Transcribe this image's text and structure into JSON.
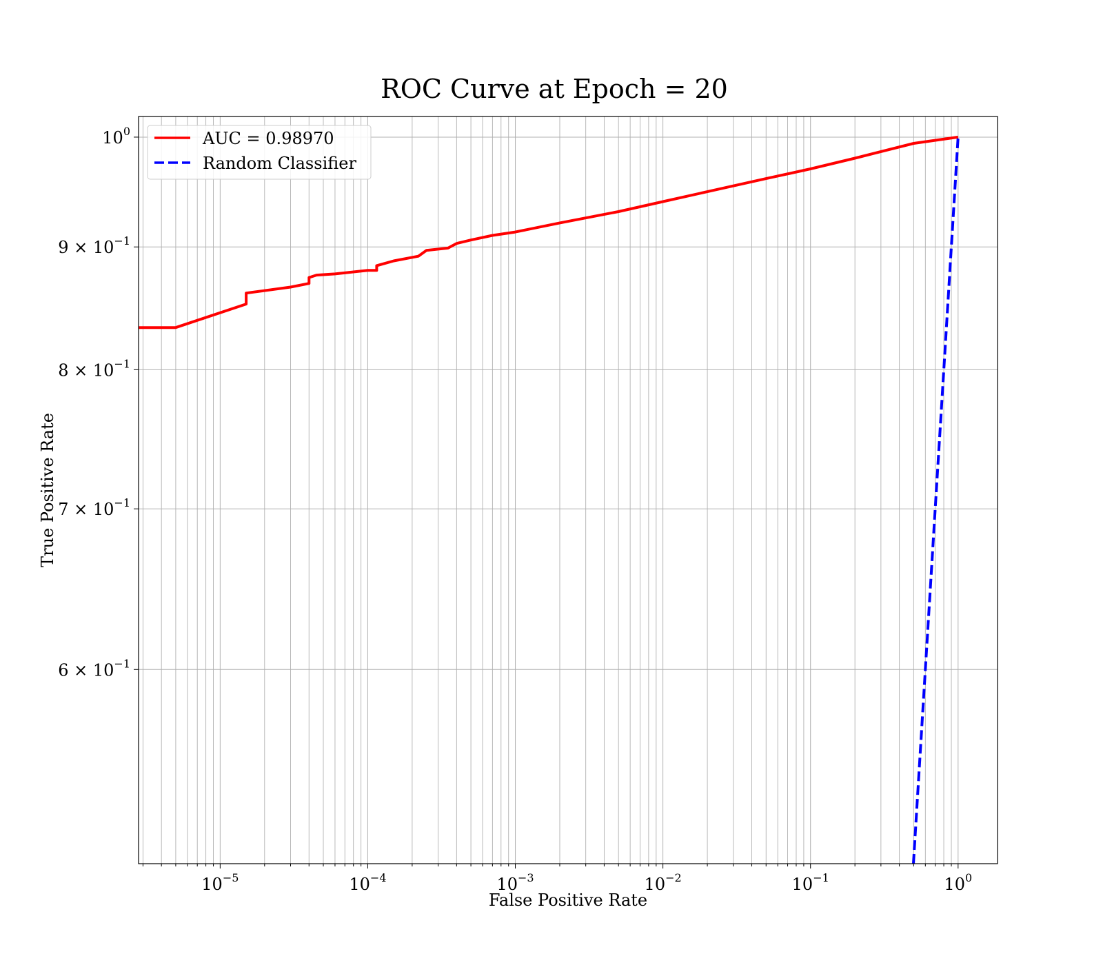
{
  "chart_data": {
    "type": "line",
    "title": "ROC Curve at Epoch = 20",
    "xlabel": "False Positive Rate",
    "ylabel": "True Positive Rate",
    "xscale": "log",
    "yscale": "log",
    "xlim": [
      2.8e-06,
      1.85
    ],
    "ylim": [
      0.498,
      1.02
    ],
    "grid": true,
    "legend_position": "top-left",
    "x_ticks": [
      {
        "value": 1e-05,
        "base": "10",
        "exp": "−5"
      },
      {
        "value": 0.0001,
        "base": "10",
        "exp": "−4"
      },
      {
        "value": 0.001,
        "base": "10",
        "exp": "−3"
      },
      {
        "value": 0.01,
        "base": "10",
        "exp": "−2"
      },
      {
        "value": 0.1,
        "base": "10",
        "exp": "−1"
      },
      {
        "value": 1,
        "base": "10",
        "exp": "0"
      }
    ],
    "y_ticks": [
      {
        "value": 1.0,
        "mant": "",
        "base": "10",
        "exp": "0"
      },
      {
        "value": 0.9,
        "mant": "9 × ",
        "base": "10",
        "exp": "−1"
      },
      {
        "value": 0.8,
        "mant": "8 × ",
        "base": "10",
        "exp": "−1"
      },
      {
        "value": 0.7,
        "mant": "7 × ",
        "base": "10",
        "exp": "−1"
      },
      {
        "value": 0.6,
        "mant": "6 × ",
        "base": "10",
        "exp": "−1"
      }
    ],
    "series": [
      {
        "name": "AUC = 0.98970",
        "color": "#ff0000",
        "style": "solid",
        "x": [
          2.8e-06,
          5e-06,
          1.5e-05,
          1.5e-05,
          3e-05,
          4e-05,
          4e-05,
          4.5e-05,
          6e-05,
          0.0001,
          0.000115,
          0.000115,
          0.00015,
          0.00022,
          0.00025,
          0.00035,
          0.0004,
          0.0005,
          0.0007,
          0.001,
          0.002,
          0.005,
          0.01,
          0.02,
          0.05,
          0.1,
          0.2,
          0.5,
          1.0
        ],
        "y": [
          0.833,
          0.833,
          0.852,
          0.861,
          0.866,
          0.869,
          0.874,
          0.876,
          0.877,
          0.88,
          0.88,
          0.884,
          0.888,
          0.892,
          0.897,
          0.899,
          0.903,
          0.906,
          0.91,
          0.913,
          0.921,
          0.931,
          0.94,
          0.949,
          0.961,
          0.97,
          0.98,
          0.994,
          1.0
        ]
      },
      {
        "name": "Random Classifier",
        "color": "#0000ff",
        "style": "dashed",
        "x": [
          0.498,
          0.55,
          0.6,
          0.7,
          0.8,
          0.9,
          1.0
        ],
        "y": [
          0.498,
          0.55,
          0.6,
          0.7,
          0.8,
          0.9,
          1.0
        ]
      }
    ]
  }
}
